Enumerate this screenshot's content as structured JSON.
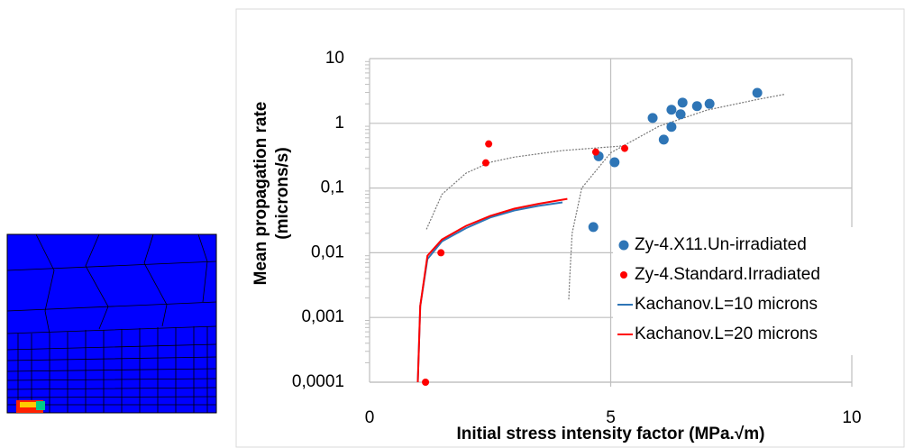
{
  "chart_data": {
    "type": "scatter",
    "x_label": "Initial stress intensity factor (MPa.√m)",
    "y_label": [
      "Mean propagation rate",
      "(microns/s)"
    ],
    "xlim": [
      0,
      10
    ],
    "xticks": [
      0,
      5,
      10
    ],
    "ylim": [
      0.0001,
      10
    ],
    "yticks": [
      {
        "value": 0.0001,
        "label": "0,0001"
      },
      {
        "value": 0.001,
        "label": "0,001"
      },
      {
        "value": 0.01,
        "label": "0,01"
      },
      {
        "value": 0.1,
        "label": "0,1"
      },
      1,
      10
    ],
    "log_y": true,
    "grid": true,
    "legend": "right",
    "series": [
      {
        "name": "Zy-4.X11.Un-irradiated",
        "color": "#2e75b6",
        "mode": "markers",
        "x": [
          4.64,
          4.75,
          5.08,
          6.1,
          5.87,
          6.26,
          6.26,
          6.45,
          6.49,
          6.79,
          7.05,
          8.04
        ],
        "values": [
          0.025,
          0.31,
          0.25,
          0.56,
          1.21,
          0.88,
          1.62,
          1.38,
          2.09,
          1.84,
          2.0,
          2.96
        ]
      },
      {
        "name": "Zy-4.Standard.Irradiated",
        "color": "#ff0000",
        "mode": "markers",
        "x": [
          1.16,
          1.48,
          2.41,
          2.47,
          4.69,
          5.29
        ],
        "values": [
          0.0001,
          0.01,
          0.245,
          0.48,
          0.36,
          0.41
        ]
      },
      {
        "name": "Kachanov.L=10 microns",
        "color": "#2e75b6",
        "mode": "line",
        "x": [
          1.0,
          1.05,
          1.2,
          1.5,
          2,
          2.5,
          3,
          3.5,
          4
        ],
        "values": [
          0.0001,
          0.0015,
          0.008,
          0.015,
          0.024,
          0.035,
          0.045,
          0.053,
          0.06
        ]
      },
      {
        "name": "Kachanov.L=20 microns",
        "color": "#ff0000",
        "mode": "line",
        "x": [
          1.0,
          1.05,
          1.2,
          1.5,
          2,
          2.5,
          3,
          3.5,
          4.1
        ],
        "values": [
          0.0001,
          0.0015,
          0.009,
          0.016,
          0.026,
          0.037,
          0.048,
          0.057,
          0.068
        ]
      }
    ],
    "trendlines": [
      {
        "color": "#777777",
        "x": [
          1.18,
          1.5,
          2,
          2.5,
          3,
          4,
          5.3
        ],
        "values": [
          0.023,
          0.08,
          0.17,
          0.25,
          0.3,
          0.38,
          0.45
        ]
      },
      {
        "color": "#777777",
        "x": [
          4.13,
          4.15,
          4.2,
          4.4,
          5,
          6,
          7,
          8,
          8.6
        ],
        "values": [
          0.0019,
          0.004,
          0.02,
          0.1,
          0.35,
          0.9,
          1.6,
          2.3,
          2.8
        ]
      }
    ]
  }
}
